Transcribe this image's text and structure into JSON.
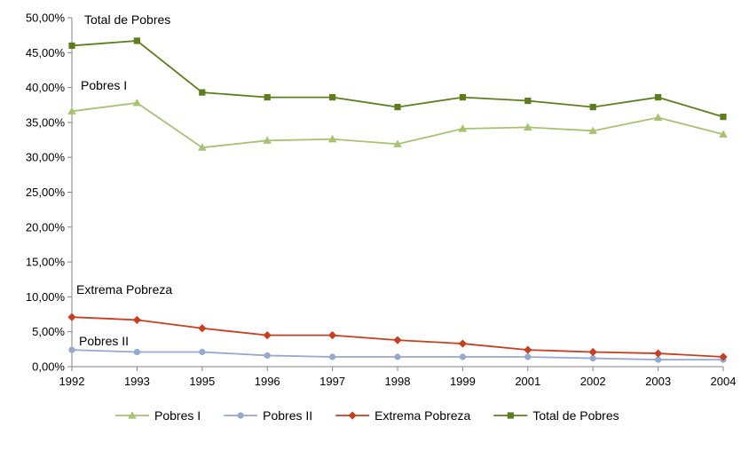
{
  "chart_data": {
    "type": "line",
    "title": "",
    "xlabel": "",
    "ylabel": "",
    "categories": [
      "1992",
      "1993",
      "1995",
      "1996",
      "1997",
      "1998",
      "1999",
      "2001",
      "2002",
      "2003",
      "2004"
    ],
    "ylim": [
      0,
      0.5
    ],
    "yticks": [
      "0,00%",
      "5,00%",
      "10,00%",
      "15,00%",
      "20,00%",
      "25,00%",
      "30,00%",
      "35,00%",
      "40,00%",
      "45,00%",
      "50,00%"
    ],
    "grid": false,
    "legend_position": "bottom",
    "series": [
      {
        "name": "Pobres I",
        "color": "#a6c36f",
        "marker": "triangle",
        "values": [
          0.366,
          0.378,
          0.314,
          0.324,
          0.326,
          0.319,
          0.341,
          0.343,
          0.338,
          0.357,
          0.333
        ]
      },
      {
        "name": "Pobres II",
        "color": "#95a9d0",
        "marker": "circle",
        "values": [
          0.024,
          0.021,
          0.021,
          0.016,
          0.014,
          0.014,
          0.014,
          0.014,
          0.012,
          0.01,
          0.01
        ]
      },
      {
        "name": "Extrema Pobreza",
        "color": "#cc3d1e",
        "marker": "diamond",
        "values": [
          0.071,
          0.067,
          0.055,
          0.045,
          0.045,
          0.038,
          0.033,
          0.024,
          0.021,
          0.019,
          0.014
        ]
      },
      {
        "name": "Total de Pobres",
        "color": "#5d7f1b",
        "marker": "square",
        "values": [
          0.46,
          0.467,
          0.393,
          0.386,
          0.386,
          0.372,
          0.386,
          0.381,
          0.372,
          0.386,
          0.358
        ]
      }
    ],
    "annotations": [
      {
        "series": "Total de Pobres",
        "text": "Total de Pobres"
      },
      {
        "series": "Pobres I",
        "text": "Pobres I"
      },
      {
        "series": "Extrema Pobreza",
        "text": "Extrema Pobreza"
      },
      {
        "series": "Pobres II",
        "text": "Pobres II"
      }
    ]
  }
}
